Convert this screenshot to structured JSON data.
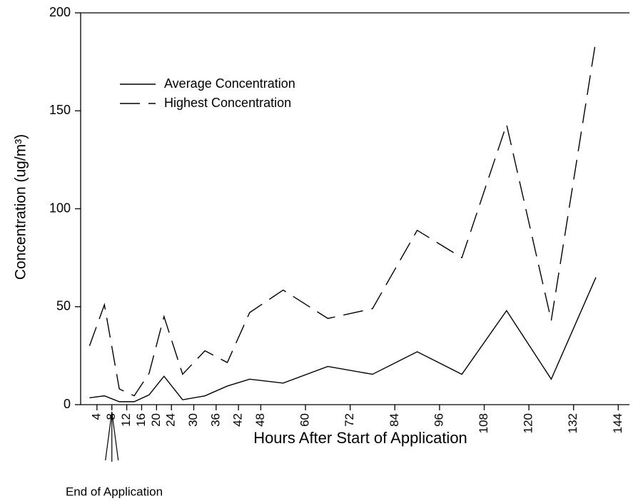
{
  "chart_data": {
    "type": "line",
    "xlabel": "Hours After Start of Application",
    "ylabel": "Concentration (ug/m³)",
    "x": [
      2,
      6,
      10,
      14,
      18,
      22,
      27,
      33,
      39,
      45,
      54,
      66,
      78,
      90,
      102,
      114,
      126,
      138
    ],
    "series": [
      {
        "name": "Average Concentration",
        "color": "#000000",
        "dash": "none",
        "values": [
          3.5,
          4.5,
          1.5,
          1.5,
          5,
          14.5,
          2.5,
          4.5,
          9.5,
          13,
          11,
          19.5,
          15.5,
          27,
          15.5,
          48,
          13,
          65
        ]
      },
      {
        "name": "Highest Concentration",
        "color": "#000000",
        "dash": "28 12",
        "values": [
          30,
          51,
          8,
          4.5,
          16,
          45,
          15.5,
          27.5,
          21.5,
          47,
          58.5,
          44,
          49,
          89,
          75,
          143,
          43,
          186
        ]
      }
    ],
    "xlim": [
      0,
      147
    ],
    "xticks": [
      4,
      8,
      12,
      16,
      20,
      24,
      30,
      36,
      42,
      48,
      60,
      72,
      84,
      96,
      108,
      120,
      132,
      144
    ],
    "ylim": [
      0,
      200
    ],
    "yticks": [
      0,
      50,
      100,
      150,
      200
    ],
    "legend": "upper-left",
    "annotation": {
      "text": "End of Application",
      "x": 8
    }
  }
}
